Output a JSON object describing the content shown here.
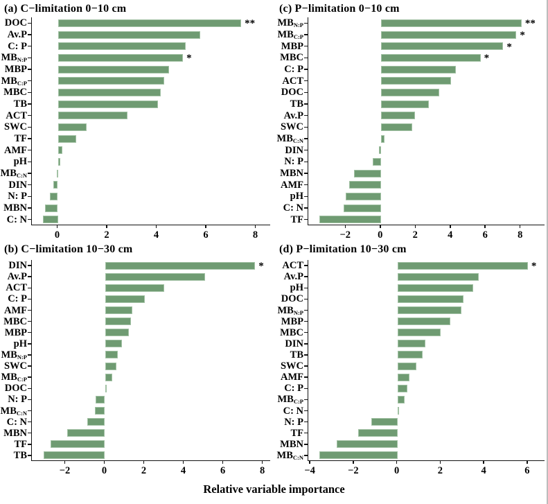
{
  "figure": {
    "xlabel": "Relative variable importance",
    "bar_fill_color": "#6f9b72",
    "bar_edge_color": "#a3c2a5",
    "axis_color": "#111111",
    "background_color": "#ffffff"
  },
  "chart_data": [
    {
      "id": "a",
      "type": "bar",
      "orientation": "horizontal",
      "title": "(a) C−limitation 0−10 cm",
      "xlim": [
        -1.05,
        8.6
      ],
      "xticks": [
        0,
        2,
        4,
        6,
        8
      ],
      "grid": false,
      "rows": [
        {
          "label": "DOC",
          "sub": "",
          "value": 7.4,
          "sig": "**"
        },
        {
          "label": "Av.P",
          "sub": "",
          "value": 5.75,
          "sig": ""
        },
        {
          "label": "C: P",
          "sub": "",
          "value": 5.15,
          "sig": ""
        },
        {
          "label": "MB",
          "sub": "N:P",
          "value": 5.05,
          "sig": "*"
        },
        {
          "label": "MBP",
          "sub": "",
          "value": 4.5,
          "sig": ""
        },
        {
          "label": "MB",
          "sub": "C:P",
          "value": 4.3,
          "sig": ""
        },
        {
          "label": "MBC",
          "sub": "",
          "value": 4.15,
          "sig": ""
        },
        {
          "label": "TB",
          "sub": "",
          "value": 4.05,
          "sig": ""
        },
        {
          "label": "ACT",
          "sub": "",
          "value": 2.8,
          "sig": ""
        },
        {
          "label": "SWC",
          "sub": "",
          "value": 1.15,
          "sig": ""
        },
        {
          "label": "TF",
          "sub": "",
          "value": 0.75,
          "sig": ""
        },
        {
          "label": "AMF",
          "sub": "",
          "value": 0.18,
          "sig": ""
        },
        {
          "label": "pH",
          "sub": "",
          "value": 0.1,
          "sig": ""
        },
        {
          "label": "MB",
          "sub": "C:N",
          "value": -0.05,
          "sig": ""
        },
        {
          "label": "DIN",
          "sub": "",
          "value": -0.18,
          "sig": ""
        },
        {
          "label": "N: P",
          "sub": "",
          "value": -0.32,
          "sig": ""
        },
        {
          "label": "MBN",
          "sub": "",
          "value": -0.52,
          "sig": ""
        },
        {
          "label": "C: N",
          "sub": "",
          "value": -0.6,
          "sig": ""
        }
      ]
    },
    {
      "id": "b",
      "type": "bar",
      "orientation": "horizontal",
      "title": "(b) C−limitation 10−30 cm",
      "xlim": [
        -3.7,
        8.4
      ],
      "xticks": [
        -2,
        0,
        2,
        4,
        6,
        8
      ],
      "grid": false,
      "rows": [
        {
          "label": "DIN",
          "sub": "",
          "value": 7.6,
          "sig": "*"
        },
        {
          "label": "Av.P",
          "sub": "",
          "value": 5.05,
          "sig": ""
        },
        {
          "label": "ACT",
          "sub": "",
          "value": 3.0,
          "sig": ""
        },
        {
          "label": "C: P",
          "sub": "",
          "value": 2.0,
          "sig": ""
        },
        {
          "label": "AMF",
          "sub": "",
          "value": 1.38,
          "sig": ""
        },
        {
          "label": "MBC",
          "sub": "",
          "value": 1.32,
          "sig": ""
        },
        {
          "label": "MBP",
          "sub": "",
          "value": 1.2,
          "sig": ""
        },
        {
          "label": "pH",
          "sub": "",
          "value": 0.86,
          "sig": ""
        },
        {
          "label": "MB",
          "sub": "N:P",
          "value": 0.65,
          "sig": ""
        },
        {
          "label": "SWC",
          "sub": "",
          "value": 0.58,
          "sig": ""
        },
        {
          "label": "MB",
          "sub": "C:P",
          "value": 0.37,
          "sig": ""
        },
        {
          "label": "DOC",
          "sub": "",
          "value": 0.05,
          "sig": ""
        },
        {
          "label": "N: P",
          "sub": "",
          "value": -0.47,
          "sig": ""
        },
        {
          "label": "MB",
          "sub": "C:N",
          "value": -0.5,
          "sig": ""
        },
        {
          "label": "C: N",
          "sub": "",
          "value": -0.9,
          "sig": ""
        },
        {
          "label": "MBN",
          "sub": "",
          "value": -1.9,
          "sig": ""
        },
        {
          "label": "TF",
          "sub": "",
          "value": -2.75,
          "sig": ""
        },
        {
          "label": "TB",
          "sub": "",
          "value": -3.1,
          "sig": ""
        }
      ]
    },
    {
      "id": "c",
      "type": "bar",
      "orientation": "horizontal",
      "title": "(c) P−limitation 0−10 cm",
      "xlim": [
        -4.15,
        9.4
      ],
      "xticks": [
        -2,
        0,
        2,
        4,
        6,
        8
      ],
      "grid": false,
      "rows": [
        {
          "label": "MB",
          "sub": "N:P",
          "value": 8.05,
          "sig": "**"
        },
        {
          "label": "MB",
          "sub": "C:P",
          "value": 7.75,
          "sig": "*"
        },
        {
          "label": "MBP",
          "sub": "",
          "value": 7.0,
          "sig": "*"
        },
        {
          "label": "MBC",
          "sub": "",
          "value": 5.7,
          "sig": "*"
        },
        {
          "label": "C: P",
          "sub": "",
          "value": 4.3,
          "sig": ""
        },
        {
          "label": "ACT",
          "sub": "",
          "value": 4.0,
          "sig": ""
        },
        {
          "label": "DOC",
          "sub": "",
          "value": 3.35,
          "sig": ""
        },
        {
          "label": "TB",
          "sub": "",
          "value": 2.75,
          "sig": ""
        },
        {
          "label": "Av.P",
          "sub": "",
          "value": 1.95,
          "sig": ""
        },
        {
          "label": "SWC",
          "sub": "",
          "value": 1.8,
          "sig": ""
        },
        {
          "label": "MB",
          "sub": "C:N",
          "value": 0.2,
          "sig": ""
        },
        {
          "label": "DIN",
          "sub": "",
          "value": -0.1,
          "sig": ""
        },
        {
          "label": "N: P",
          "sub": "",
          "value": -0.46,
          "sig": ""
        },
        {
          "label": "MBN",
          "sub": "",
          "value": -1.53,
          "sig": ""
        },
        {
          "label": "AMF",
          "sub": "",
          "value": -1.83,
          "sig": ""
        },
        {
          "label": "pH",
          "sub": "",
          "value": -2.0,
          "sig": ""
        },
        {
          "label": "C: N",
          "sub": "",
          "value": -2.15,
          "sig": ""
        },
        {
          "label": "TF",
          "sub": "",
          "value": -3.5,
          "sig": ""
        }
      ]
    },
    {
      "id": "d",
      "type": "bar",
      "orientation": "horizontal",
      "title": "(d) P−limitation 10−30 cm",
      "xlim": [
        -4.1,
        6.8
      ],
      "xticks": [
        -4,
        -2,
        0,
        2,
        4,
        6
      ],
      "grid": false,
      "rows": [
        {
          "label": "ACT",
          "sub": "",
          "value": 6.0,
          "sig": "*"
        },
        {
          "label": "Av.P",
          "sub": "",
          "value": 3.75,
          "sig": ""
        },
        {
          "label": "pH",
          "sub": "",
          "value": 3.5,
          "sig": ""
        },
        {
          "label": "DOC",
          "sub": "",
          "value": 3.05,
          "sig": ""
        },
        {
          "label": "MB",
          "sub": "N:P",
          "value": 2.95,
          "sig": ""
        },
        {
          "label": "MBP",
          "sub": "",
          "value": 2.45,
          "sig": ""
        },
        {
          "label": "MBC",
          "sub": "",
          "value": 2.0,
          "sig": ""
        },
        {
          "label": "DIN",
          "sub": "",
          "value": 1.28,
          "sig": ""
        },
        {
          "label": "TB",
          "sub": "",
          "value": 1.15,
          "sig": ""
        },
        {
          "label": "SWC",
          "sub": "",
          "value": 0.87,
          "sig": ""
        },
        {
          "label": "AMF",
          "sub": "",
          "value": 0.56,
          "sig": ""
        },
        {
          "label": "C: P",
          "sub": "",
          "value": 0.46,
          "sig": ""
        },
        {
          "label": "MB",
          "sub": "C:P",
          "value": 0.34,
          "sig": ""
        },
        {
          "label": "C: N",
          "sub": "",
          "value": 0.05,
          "sig": ""
        },
        {
          "label": "N: P",
          "sub": "",
          "value": -1.2,
          "sig": ""
        },
        {
          "label": "TF",
          "sub": "",
          "value": -1.8,
          "sig": ""
        },
        {
          "label": "MBN",
          "sub": "",
          "value": -2.8,
          "sig": ""
        },
        {
          "label": "MB",
          "sub": "C:N",
          "value": -3.6,
          "sig": ""
        }
      ]
    }
  ]
}
